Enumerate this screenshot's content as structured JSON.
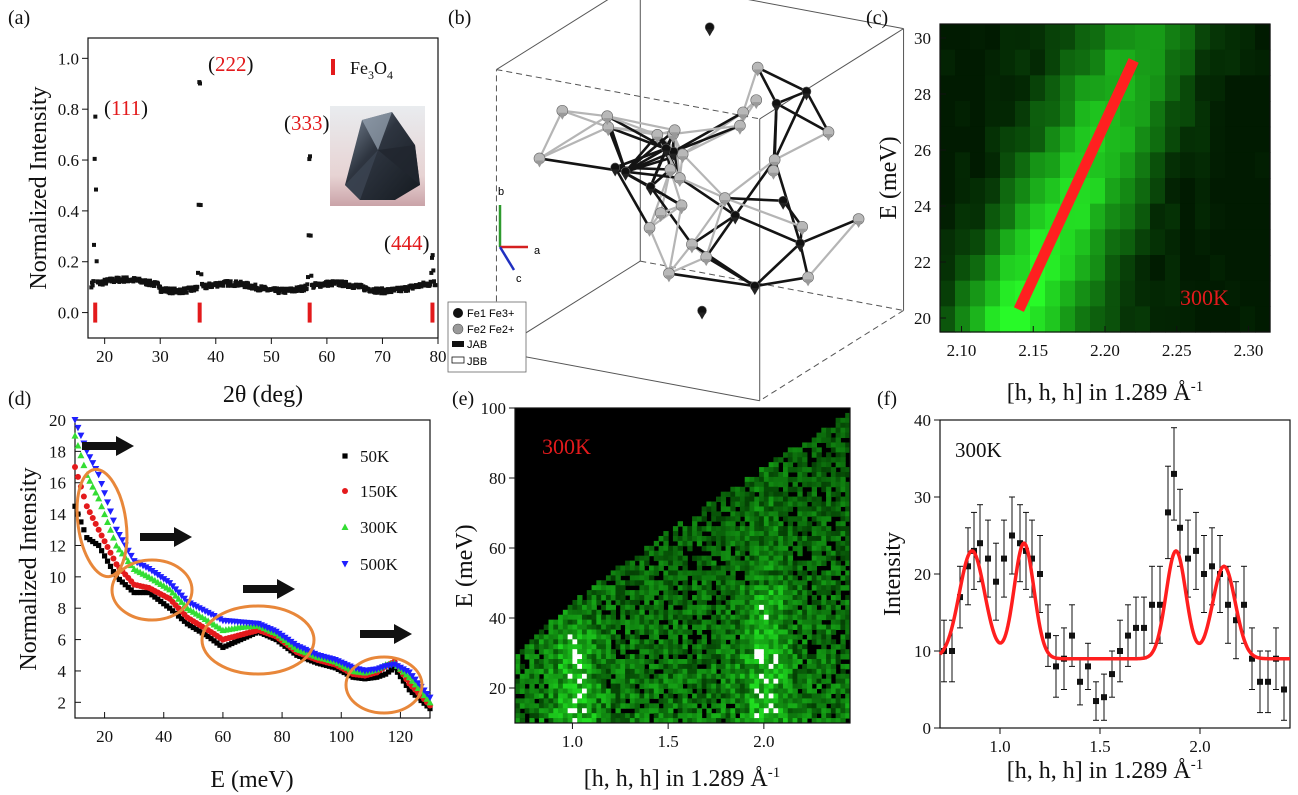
{
  "colors": {
    "accent_red": "#e31a1c",
    "series_50K": "#000000",
    "series_150K": "#e41a1c",
    "series_300K": "#33dd33",
    "series_500K": "#1f1fff",
    "ellipse": "#e8873a",
    "green": "#22dd22"
  },
  "chart_data": [
    {
      "panel": "(a)",
      "type": "scatter",
      "xlabel": "2θ (deg)",
      "ylabel": "Normalized Intensity",
      "xlim": [
        17,
        80
      ],
      "ylim": [
        -0.1,
        1.08
      ],
      "xticks": [
        20,
        30,
        40,
        50,
        60,
        70,
        80
      ],
      "yticks": [
        0.0,
        0.2,
        0.4,
        0.6,
        0.8,
        1.0
      ],
      "legend": {
        "label_main": "Fe",
        "sub1": "3",
        "mid": "O",
        "sub2": "4",
        "placement": "top-right"
      },
      "peaks": [
        {
          "x": 18.3,
          "y": 0.77,
          "pre": "(",
          "hkl": "111",
          "post": ")"
        },
        {
          "x": 37.1,
          "y": 1.0,
          "pre": "(",
          "hkl": "222",
          "post": ")"
        },
        {
          "x": 56.9,
          "y": 0.67,
          "pre": "(",
          "hkl": "333",
          "post": ")"
        },
        {
          "x": 79.0,
          "y": 0.22,
          "pre": "(",
          "hkl": "444",
          "post": ")"
        }
      ],
      "reference_peaks_x": [
        18.3,
        37.1,
        56.9,
        79.0
      ],
      "reference_y": 0.0,
      "background_y": 0.1
    },
    {
      "panel": "(b)",
      "type": "diagram",
      "axes_labels": [
        "a",
        "b",
        "c"
      ],
      "legend": [
        {
          "symbol": "filled-circle",
          "label": "Fe1 Fe3+"
        },
        {
          "symbol": "grey-circle",
          "label": "Fe2 Fe2+"
        },
        {
          "symbol": "filled-rect",
          "label": "JAB"
        },
        {
          "symbol": "open-rect",
          "label": "JBB"
        }
      ]
    },
    {
      "panel": "(c)",
      "type": "heatmap",
      "xlabel_main": "[h, h, h] in 1.289 Å",
      "xlabel_sup": "-1",
      "ylabel": "E (meV)",
      "xlim": [
        2.085,
        2.315
      ],
      "ylim": [
        19.5,
        30.5
      ],
      "xticks": [
        2.1,
        2.15,
        2.2,
        2.25,
        2.3
      ],
      "yticks": [
        20,
        22,
        24,
        26,
        28,
        30
      ],
      "annotation": "300K",
      "dispersion_line": {
        "x": [
          2.14,
          2.22
        ],
        "y": [
          20.3,
          29.2
        ]
      }
    },
    {
      "panel": "(d)",
      "type": "scatter",
      "xlabel": "E (meV)",
      "ylabel": "Normalized Intensity",
      "xlim": [
        10,
        130
      ],
      "ylim": [
        1,
        20
      ],
      "xticks": [
        20,
        40,
        60,
        80,
        100,
        120
      ],
      "yticks": [
        2,
        4,
        6,
        8,
        10,
        12,
        14,
        16,
        18,
        20
      ],
      "legend_placement": "top-right",
      "series": [
        {
          "name": "50K",
          "marker": "square",
          "peaks": [
            15,
            36,
            61,
            112
          ],
          "y": [
            14.5,
            12.5,
            12.0,
            10.0,
            9.0,
            9.0,
            8.0,
            7.0,
            6.2,
            5.5,
            6.0,
            6.5,
            6.0,
            5.0,
            4.5,
            4.2,
            3.6,
            3.5,
            3.6,
            3.8,
            4.2,
            2.8,
            1.6
          ]
        },
        {
          "name": "150K",
          "marker": "circle",
          "peaks": [
            16,
            38,
            64,
            114
          ],
          "y": [
            17.0,
            14.5,
            13.0,
            10.8,
            9.5,
            9.3,
            8.6,
            7.4,
            6.6,
            6.0,
            6.3,
            6.6,
            6.2,
            5.2,
            4.7,
            4.4,
            3.8,
            3.7,
            3.9,
            4.3,
            4.6,
            3.2,
            1.8
          ]
        },
        {
          "name": "300K",
          "marker": "triangle-up",
          "peaks": [
            17,
            40,
            67,
            116
          ],
          "y": [
            19.0,
            16.5,
            15.0,
            12.0,
            10.5,
            10.0,
            9.2,
            8.0,
            7.2,
            6.6,
            6.8,
            6.9,
            6.4,
            5.4,
            4.9,
            4.6,
            4.0,
            3.9,
            4.1,
            4.4,
            4.5,
            3.6,
            2.0
          ]
        },
        {
          "name": "500K",
          "marker": "triangle-down",
          "peaks": [
            18,
            42,
            70,
            118
          ],
          "y": [
            20.0,
            18.0,
            16.5,
            13.0,
            11.0,
            10.5,
            9.6,
            8.4,
            7.7,
            7.2,
            7.1,
            7.0,
            6.5,
            5.6,
            5.0,
            4.7,
            4.2,
            4.0,
            4.1,
            4.3,
            4.4,
            3.9,
            2.3
          ]
        }
      ],
      "x": [
        10,
        14,
        18,
        24,
        30,
        35,
        42,
        48,
        55,
        60,
        66,
        72,
        78,
        85,
        92,
        98,
        104,
        108,
        112,
        115,
        118,
        123,
        130
      ]
    },
    {
      "panel": "(e)",
      "type": "heatmap",
      "xlabel_main": "[h, h, h] in 1.289 Å",
      "xlabel_sup": "-1",
      "ylabel": "E (meV)",
      "xlim": [
        0.7,
        2.45
      ],
      "ylim": [
        10,
        100
      ],
      "xticks": [
        1.0,
        1.5,
        2.0
      ],
      "yticks": [
        20,
        40,
        60,
        80,
        100
      ],
      "annotation": "300K"
    },
    {
      "panel": "(f)",
      "type": "scatter",
      "xlabel_main": "[h, h, h] in 1.289 Å",
      "xlabel_sup": "-1",
      "ylabel": "Intensity",
      "xlim": [
        0.7,
        2.45
      ],
      "ylim": [
        0,
        40
      ],
      "xticks": [
        1.0,
        1.5,
        2.0
      ],
      "yticks": [
        0,
        10,
        20,
        30,
        40
      ],
      "annotation": "300K",
      "x": [
        0.72,
        0.76,
        0.8,
        0.84,
        0.87,
        0.9,
        0.94,
        0.98,
        1.02,
        1.06,
        1.1,
        1.13,
        1.16,
        1.2,
        1.24,
        1.28,
        1.32,
        1.36,
        1.4,
        1.44,
        1.48,
        1.52,
        1.56,
        1.6,
        1.64,
        1.68,
        1.72,
        1.76,
        1.8,
        1.84,
        1.87,
        1.9,
        1.94,
        1.98,
        2.02,
        2.06,
        2.1,
        2.14,
        2.18,
        2.22,
        2.26,
        2.3,
        2.34,
        2.38,
        2.42
      ],
      "y": [
        10,
        10,
        17,
        21,
        23,
        24,
        22,
        19,
        22,
        25,
        24,
        23,
        22,
        20,
        12,
        8,
        9,
        12,
        6,
        8,
        3.5,
        4,
        7,
        10,
        12,
        13,
        13,
        16,
        16,
        28,
        33,
        26,
        22,
        23,
        20,
        21,
        20,
        16,
        14,
        16,
        9,
        6,
        6,
        9,
        5
      ],
      "err": [
        4,
        4,
        4,
        5,
        5,
        5,
        5,
        5,
        5,
        5,
        5,
        5,
        5,
        5,
        4,
        4,
        4,
        4,
        3,
        3,
        2.5,
        3,
        3,
        4,
        4,
        4,
        4,
        5,
        5,
        6,
        6,
        5,
        5,
        5,
        5,
        5,
        5,
        5,
        5,
        5,
        4,
        4,
        4,
        4,
        4
      ],
      "fit": {
        "baseline": 9,
        "peaks": [
          {
            "c": 0.86,
            "a": 14,
            "w": 0.09
          },
          {
            "c": 1.12,
            "a": 15,
            "w": 0.07
          },
          {
            "c": 1.88,
            "a": 14,
            "w": 0.07
          },
          {
            "c": 2.12,
            "a": 12,
            "w": 0.08
          }
        ]
      }
    }
  ]
}
